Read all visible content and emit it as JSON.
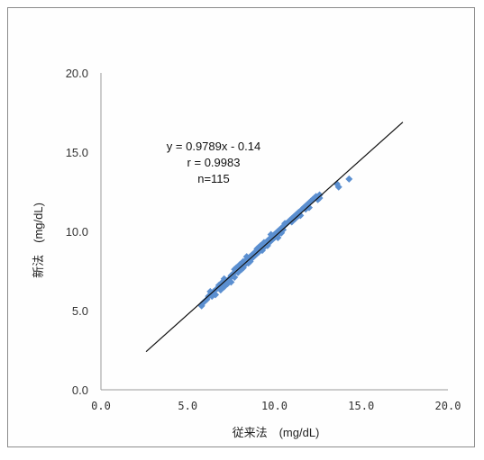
{
  "chart_data": {
    "type": "scatter",
    "title": "",
    "xlabel": "従来法　(mg/dL)",
    "ylabel": "新法　(mg/dL)",
    "xlim": [
      0,
      20
    ],
    "ylim": [
      0,
      20
    ],
    "x_ticks": [
      "0.0",
      "5.0",
      "10.0",
      "15.0",
      "20.0"
    ],
    "y_ticks": [
      "0.0",
      "5.0",
      "10.0",
      "15.0",
      "20.0"
    ],
    "grid": false,
    "marker_color": "#5b8fd0",
    "line_color": "#111111",
    "annotations": [
      "y = 0.9789x - 0.14",
      "r = 0.9983",
      "n=115"
    ],
    "regression": {
      "slope": 0.9789,
      "intercept": -0.14,
      "x_range": [
        2.6,
        17.4
      ]
    },
    "points": [
      [
        5.8,
        5.3
      ],
      [
        5.9,
        5.5
      ],
      [
        6.4,
        5.9
      ],
      [
        6.5,
        6.2
      ],
      [
        6.6,
        6.0
      ],
      [
        6.7,
        6.4
      ],
      [
        6.8,
        6.6
      ],
      [
        6.9,
        6.3
      ],
      [
        7.0,
        6.8
      ],
      [
        7.1,
        6.5
      ],
      [
        7.2,
        6.9
      ],
      [
        7.3,
        6.7
      ],
      [
        7.4,
        7.0
      ],
      [
        7.5,
        7.2
      ],
      [
        7.5,
        6.8
      ],
      [
        7.6,
        7.3
      ],
      [
        7.7,
        7.1
      ],
      [
        7.8,
        7.5
      ],
      [
        7.8,
        7.7
      ],
      [
        7.9,
        7.4
      ],
      [
        8.0,
        7.6
      ],
      [
        8.0,
        7.9
      ],
      [
        8.1,
        7.8
      ],
      [
        8.2,
        8.0
      ],
      [
        8.2,
        7.7
      ],
      [
        8.3,
        8.1
      ],
      [
        8.3,
        7.9
      ],
      [
        8.4,
        8.2
      ],
      [
        8.4,
        8.4
      ],
      [
        8.5,
        8.0
      ],
      [
        8.5,
        8.3
      ],
      [
        8.6,
        8.4
      ],
      [
        8.6,
        8.1
      ],
      [
        8.7,
        8.5
      ],
      [
        8.7,
        8.3
      ],
      [
        8.8,
        8.6
      ],
      [
        8.8,
        8.4
      ],
      [
        8.9,
        8.7
      ],
      [
        8.9,
        8.5
      ],
      [
        9.0,
        8.8
      ],
      [
        9.0,
        8.6
      ],
      [
        9.0,
        8.9
      ],
      [
        9.1,
        8.7
      ],
      [
        9.1,
        9.0
      ],
      [
        9.2,
        8.9
      ],
      [
        9.2,
        9.1
      ],
      [
        9.3,
        9.0
      ],
      [
        9.3,
        8.8
      ],
      [
        9.4,
        9.2
      ],
      [
        9.4,
        9.0
      ],
      [
        9.5,
        9.3
      ],
      [
        9.5,
        9.1
      ],
      [
        9.6,
        9.4
      ],
      [
        9.6,
        9.2
      ],
      [
        9.7,
        9.5
      ],
      [
        9.7,
        9.3
      ],
      [
        9.8,
        9.6
      ],
      [
        9.8,
        9.4
      ],
      [
        9.9,
        9.7
      ],
      [
        9.9,
        9.5
      ],
      [
        10.0,
        9.8
      ],
      [
        10.0,
        9.6
      ],
      [
        10.1,
        9.9
      ],
      [
        10.1,
        9.7
      ],
      [
        10.2,
        10.0
      ],
      [
        10.2,
        9.8
      ],
      [
        10.3,
        10.1
      ],
      [
        10.3,
        9.9
      ],
      [
        10.4,
        10.2
      ],
      [
        10.5,
        10.3
      ],
      [
        10.5,
        10.1
      ],
      [
        10.6,
        10.4
      ],
      [
        10.7,
        10.5
      ],
      [
        10.8,
        10.6
      ],
      [
        10.9,
        10.7
      ],
      [
        11.0,
        10.8
      ],
      [
        11.0,
        10.6
      ],
      [
        11.1,
        10.9
      ],
      [
        11.2,
        11.0
      ],
      [
        11.2,
        10.8
      ],
      [
        11.3,
        11.1
      ],
      [
        11.4,
        11.2
      ],
      [
        11.5,
        11.0
      ],
      [
        11.6,
        11.4
      ],
      [
        11.7,
        11.5
      ],
      [
        11.8,
        11.6
      ],
      [
        11.9,
        11.7
      ],
      [
        12.0,
        11.8
      ],
      [
        12.1,
        11.9
      ],
      [
        12.2,
        12.0
      ],
      [
        12.3,
        12.1
      ],
      [
        12.4,
        12.2
      ],
      [
        12.5,
        12.0
      ],
      [
        12.6,
        12.3
      ],
      [
        12.6,
        12.1
      ],
      [
        13.6,
        13.0
      ],
      [
        13.7,
        12.8
      ],
      [
        14.3,
        13.3
      ],
      [
        10.2,
        9.6
      ],
      [
        9.4,
        9.3
      ],
      [
        8.2,
        8.1
      ],
      [
        7.1,
        7.0
      ],
      [
        6.1,
        5.7
      ],
      [
        6.2,
        5.9
      ],
      [
        6.3,
        6.2
      ],
      [
        8.9,
        8.6
      ],
      [
        9.6,
        9.1
      ],
      [
        10.4,
        9.9
      ],
      [
        11.4,
        11.0
      ],
      [
        12.0,
        11.5
      ],
      [
        7.7,
        7.6
      ],
      [
        8.1,
        7.6
      ],
      [
        9.8,
        9.8
      ],
      [
        10.6,
        10.5
      ],
      [
        11.8,
        11.4
      ]
    ]
  }
}
